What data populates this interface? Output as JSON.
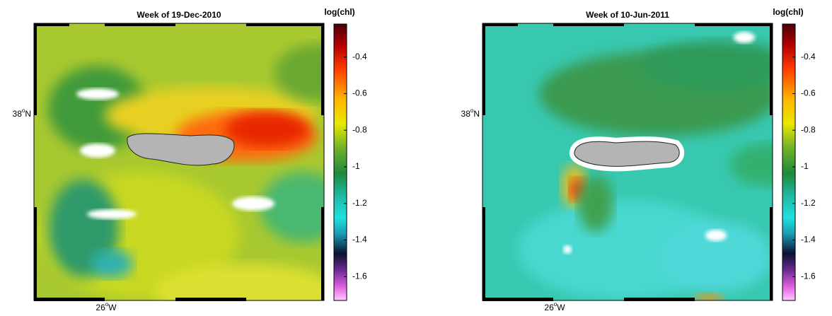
{
  "panels": [
    {
      "title": "Week of 19-Dec-2010",
      "lat_label": {
        "value": "38",
        "sup": "o",
        "hemi": "N"
      },
      "lon_label": {
        "value": "26",
        "sup": "o",
        "hemi": "W"
      },
      "colorbar": {
        "label": "log(chl)",
        "lim": [
          -1.73,
          -0.22
        ],
        "ticks": [
          -0.4,
          -0.6,
          -0.8,
          -1,
          -1.2,
          -1.4,
          -1.6
        ]
      }
    },
    {
      "title": "Week of 10-Jun-2011",
      "lat_label": {
        "value": "38",
        "sup": "o",
        "hemi": "N"
      },
      "lon_label": {
        "value": "26",
        "sup": "o",
        "hemi": "W"
      },
      "colorbar": {
        "label": "log(chl)",
        "lim": [
          -1.73,
          -0.22
        ],
        "ticks": [
          -0.4,
          -0.6,
          -0.8,
          -1,
          -1.2,
          -1.4,
          -1.6
        ]
      }
    }
  ]
}
